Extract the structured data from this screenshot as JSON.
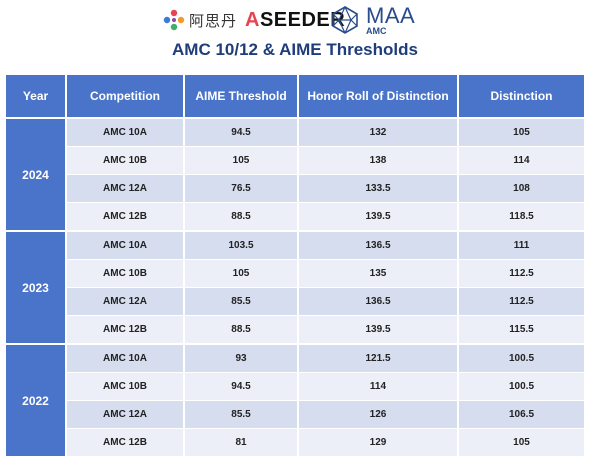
{
  "header": {
    "aseeder_cn": "阿思丹",
    "aseeder_en_prefix": "A",
    "aseeder_en_rest": "SEEDER",
    "maa_main": "MAA",
    "maa_sub": "AMC"
  },
  "title": "AMC 10/12 & AIME Thresholds",
  "columns": [
    "Year",
    "Competition",
    "AIME Threshold",
    "Honor Roll of Distinction",
    "Distinction"
  ],
  "groups": [
    {
      "year": "2024",
      "rows": [
        {
          "competition": "AMC 10A",
          "aime": "94.5",
          "honor": "132",
          "distinction": "105"
        },
        {
          "competition": "AMC 10B",
          "aime": "105",
          "honor": "138",
          "distinction": "114"
        },
        {
          "competition": "AMC 12A",
          "aime": "76.5",
          "honor": "133.5",
          "distinction": "108"
        },
        {
          "competition": "AMC 12B",
          "aime": "88.5",
          "honor": "139.5",
          "distinction": "118.5"
        }
      ]
    },
    {
      "year": "2023",
      "rows": [
        {
          "competition": "AMC 10A",
          "aime": "103.5",
          "honor": "136.5",
          "distinction": "111"
        },
        {
          "competition": "AMC 10B",
          "aime": "105",
          "honor": "135",
          "distinction": "112.5"
        },
        {
          "competition": "AMC 12A",
          "aime": "85.5",
          "honor": "136.5",
          "distinction": "112.5"
        },
        {
          "competition": "AMC 12B",
          "aime": "88.5",
          "honor": "139.5",
          "distinction": "115.5"
        }
      ]
    },
    {
      "year": "2022",
      "rows": [
        {
          "competition": "AMC 10A",
          "aime": "93",
          "honor": "121.5",
          "distinction": "100.5"
        },
        {
          "competition": "AMC 10B",
          "aime": "94.5",
          "honor": "114",
          "distinction": "100.5"
        },
        {
          "competition": "AMC 12A",
          "aime": "85.5",
          "honor": "126",
          "distinction": "106.5"
        },
        {
          "competition": "AMC 12B",
          "aime": "81",
          "honor": "129",
          "distinction": "105"
        }
      ]
    }
  ],
  "colors": {
    "header_blue": "#4a74c9",
    "title_blue": "#1f3d7a",
    "row_shade": "#d5ddee",
    "row_plain": "#eceff7",
    "accent_pink": "#e8434f"
  }
}
